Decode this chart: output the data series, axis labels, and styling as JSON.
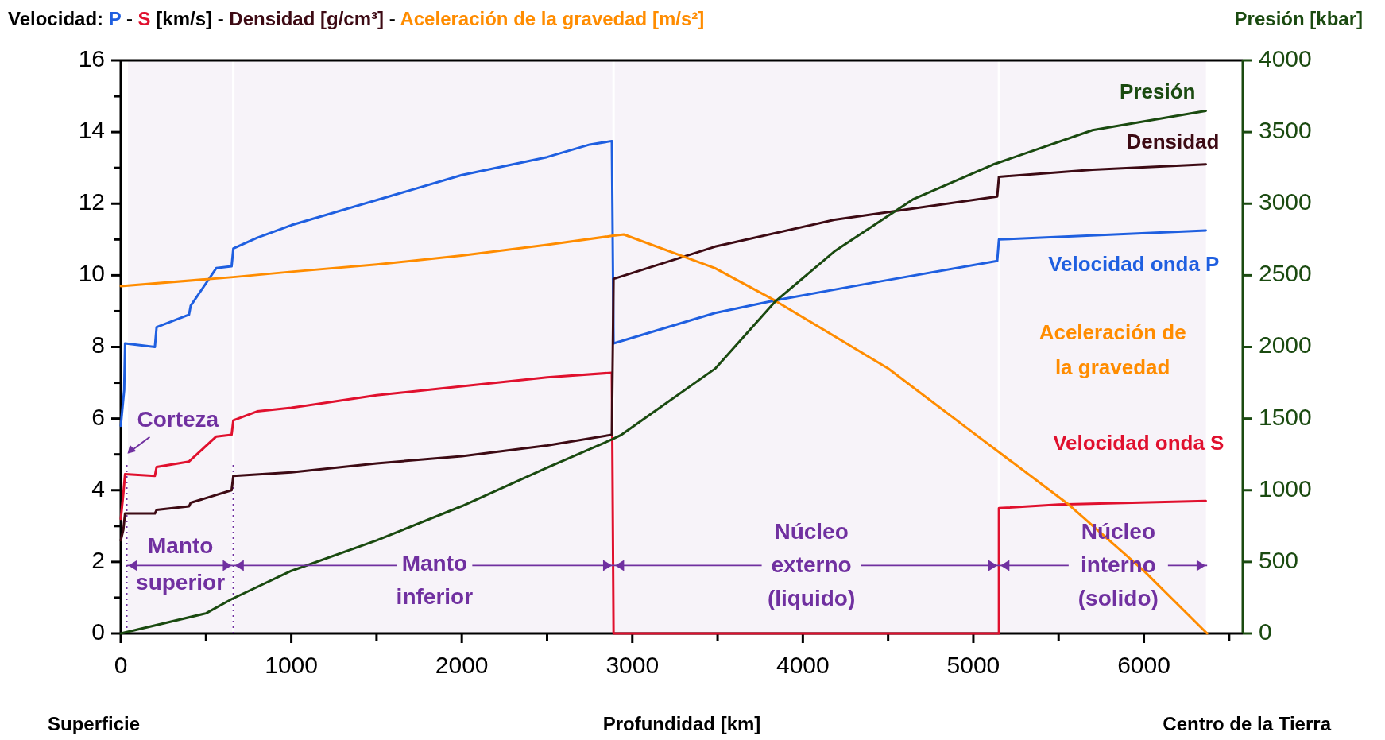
{
  "chart_data": {
    "type": "line",
    "ylabel": "Velocidad: P - S [km/s] - Densidad [g/cm³] - Aceleración de la gravedad [m/s²]",
    "y2label": "Presión [kbar]",
    "xlabel": "Profundidad [km]",
    "xlim": [
      0,
      6580
    ],
    "xticks": [
      0,
      {
        "value": 500,
        "label": null
      },
      1000,
      {
        "value": 1500,
        "label": null
      },
      2000,
      {
        "value": 2500,
        "label": null
      },
      3000,
      {
        "value": 3500,
        "label": null
      },
      4000,
      {
        "value": 4500,
        "label": null
      },
      5000,
      {
        "value": 5500,
        "label": null
      },
      6000,
      {
        "value": 6500,
        "label": null
      }
    ],
    "ylim": [
      0,
      16
    ],
    "yticks": [
      0,
      {
        "value": 1,
        "label": null
      },
      2,
      {
        "value": 3,
        "label": null
      },
      4,
      {
        "value": 5,
        "label": null
      },
      6,
      {
        "value": 7,
        "label": null
      },
      8,
      {
        "value": 9,
        "label": null
      },
      10,
      {
        "value": 11,
        "label": null
      },
      12,
      {
        "value": 13,
        "label": null
      },
      14,
      {
        "value": 15,
        "label": null
      },
      16
    ],
    "y2lim": [
      0,
      4000
    ],
    "y2ticks": [
      0,
      500,
      1000,
      1500,
      2000,
      2500,
      3000,
      3500,
      4000
    ],
    "line_style": "solid",
    "series": [
      {
        "name": "Velocidad onda P",
        "color": "#1f5fe0",
        "x": [
          0,
          20,
          25,
          200,
          210,
          400,
          410,
          560,
          650,
          660,
          800,
          1000,
          1500,
          2000,
          2500,
          2750,
          2880,
          2890,
          3485,
          3835,
          4418,
          5140,
          5150,
          6363
        ],
        "values": [
          5.8,
          6.8,
          8.1,
          8.0,
          8.55,
          8.9,
          9.15,
          10.2,
          10.25,
          10.75,
          11.05,
          11.4,
          12.1,
          12.8,
          13.3,
          13.65,
          13.75,
          8.1,
          8.95,
          9.3,
          9.8,
          10.4,
          11.0,
          11.25
        ]
      },
      {
        "name": "Velocidad onda S",
        "color": "#e0102e",
        "x": [
          0,
          15,
          25,
          200,
          210,
          400,
          560,
          650,
          660,
          800,
          1000,
          1500,
          2000,
          2500,
          2880,
          2890,
          5150,
          5150,
          5500,
          6363
        ],
        "values": [
          3.2,
          3.9,
          4.45,
          4.4,
          4.65,
          4.8,
          5.5,
          5.55,
          5.95,
          6.2,
          6.3,
          6.65,
          6.9,
          7.15,
          7.28,
          0,
          0,
          3.5,
          3.6,
          3.7
        ]
      },
      {
        "name": "Densidad",
        "color": "#3d0a14",
        "x": [
          0,
          15,
          25,
          200,
          210,
          400,
          410,
          650,
          660,
          1000,
          1500,
          2000,
          2500,
          2880,
          2890,
          3485,
          4185,
          5140,
          5150,
          5699,
          6363
        ],
        "values": [
          2.6,
          2.9,
          3.35,
          3.35,
          3.45,
          3.55,
          3.65,
          4.0,
          4.4,
          4.5,
          4.75,
          4.95,
          5.25,
          5.55,
          9.9,
          10.8,
          11.55,
          12.2,
          12.75,
          12.95,
          13.1
        ]
      },
      {
        "name": "Aceleración de la gravedad",
        "color": "#ff8c00",
        "x": [
          0,
          660,
          1000,
          1500,
          2000,
          2500,
          2880,
          2950,
          3485,
          3835,
          4500,
          5000,
          5559,
          6000,
          6371
        ],
        "values": [
          9.7,
          9.95,
          10.1,
          10.3,
          10.55,
          10.85,
          11.1,
          11.14,
          10.2,
          9.3,
          7.4,
          5.6,
          3.6,
          1.75,
          0
        ]
      },
      {
        "name": "Presión",
        "color": "#1a4a10",
        "axis": "y2",
        "x": [
          0,
          500,
          650,
          1000,
          1500,
          2000,
          2500,
          2880,
          2931,
          3485,
          3835,
          4185,
          4650,
          5115,
          5699,
          6363
        ],
        "values": [
          0,
          141,
          240,
          437,
          650,
          889,
          1157,
          1354,
          1383,
          1848,
          2314,
          2667,
          3033,
          3273,
          3513,
          3648
        ]
      }
    ],
    "ref_lines": [
      {
        "axis": "x",
        "value": 35,
        "color": "#7030a0",
        "line_style": "dotted"
      },
      {
        "axis": "x",
        "value": 660,
        "color": "#7030a0",
        "line_style": "dotted"
      }
    ],
    "annotations": [
      "Superficie",
      "Centro de la Tierra",
      "Corteza"
    ],
    "bands": [
      {
        "axis": "x",
        "from": 35,
        "to": 660,
        "label": "Manto superior",
        "color": "#7030a0"
      },
      {
        "axis": "x",
        "from": 660,
        "to": 2890,
        "label": "Manto inferior",
        "color": "#7030a0"
      },
      {
        "axis": "x",
        "from": 2890,
        "to": 5150,
        "label": "Núcleo externo (liquido)",
        "color": "#7030a0"
      },
      {
        "axis": "x",
        "from": 5150,
        "to": 6371,
        "label": "Núcleo interno (solido)",
        "color": "#7030a0"
      }
    ]
  }
}
